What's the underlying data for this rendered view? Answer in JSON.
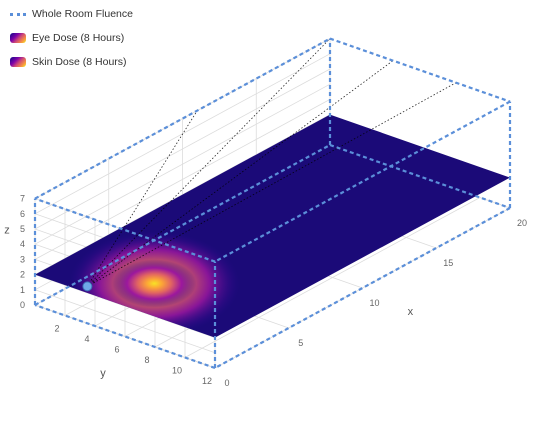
{
  "chart_data": {
    "type": "surface3d",
    "legend": [
      {
        "name": "Whole Room Fluence",
        "style": "dotted-line",
        "color": "#5b8fd9"
      },
      {
        "name": "Eye Dose (8 Hours)",
        "style": "colorscale"
      },
      {
        "name": "Skin Dose (8 Hours)",
        "style": "colorscale"
      }
    ],
    "axes": {
      "x": {
        "label": "x",
        "range": [
          0,
          20
        ],
        "ticks": [
          0,
          5,
          10,
          15,
          20
        ]
      },
      "y": {
        "label": "y",
        "range": [
          0,
          12
        ],
        "ticks": [
          2,
          4,
          6,
          8,
          10,
          12
        ]
      },
      "z": {
        "label": "z",
        "range": [
          0,
          7
        ],
        "ticks": [
          0,
          1,
          2,
          3,
          4,
          5,
          6,
          7
        ]
      }
    },
    "surface": {
      "z_level": 2,
      "colorscale": "plasma",
      "peak": {
        "x": 2.5,
        "y": 5.5
      }
    },
    "lamp": {
      "x": 0.5,
      "y": 3,
      "z": 2
    },
    "room_box": {
      "x": [
        0,
        20
      ],
      "y": [
        0,
        12
      ],
      "z": [
        0,
        7
      ]
    },
    "grid": true
  }
}
